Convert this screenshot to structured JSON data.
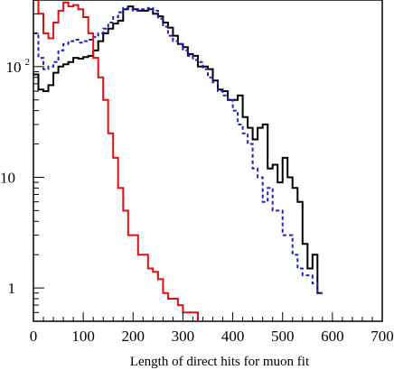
{
  "chart_data": {
    "type": "line",
    "title": "",
    "xlabel": "Length of direct hits for muon fit",
    "ylabel": "",
    "xlim": [
      0,
      700
    ],
    "ylim": [
      0.5,
      400
    ],
    "y_scale": "log",
    "grid": false,
    "legend": "none",
    "x_ticks": [
      {
        "value": 0,
        "label": "0"
      },
      {
        "value": 100,
        "label": "100"
      },
      {
        "value": 200,
        "label": "200"
      },
      {
        "value": 300,
        "label": "300"
      },
      {
        "value": 400,
        "label": "400"
      },
      {
        "value": 500,
        "label": "500"
      },
      {
        "value": 600,
        "label": "600"
      },
      {
        "value": 700,
        "label": "700"
      }
    ],
    "y_ticks": [
      {
        "value": 1,
        "label": "1",
        "exp": ""
      },
      {
        "value": 10,
        "label": "10",
        "exp": ""
      },
      {
        "value": 100,
        "label": "10",
        "exp": "2"
      }
    ],
    "bin_width": 10,
    "series": [
      {
        "color": "#000000",
        "dash": "",
        "stroke_width": 2,
        "x": [
          0,
          10,
          20,
          30,
          40,
          50,
          60,
          70,
          80,
          90,
          100,
          110,
          120,
          130,
          140,
          150,
          160,
          170,
          180,
          190,
          200,
          210,
          220,
          230,
          240,
          250,
          260,
          270,
          280,
          290,
          300,
          310,
          320,
          330,
          340,
          350,
          360,
          370,
          380,
          390,
          400,
          410,
          420,
          430,
          440,
          450,
          460,
          470,
          480,
          490,
          500,
          510,
          520,
          530,
          540,
          550,
          560,
          570
        ],
        "values": [
          85,
          62,
          60,
          68,
          88,
          100,
          105,
          110,
          120,
          118,
          122,
          125,
          140,
          170,
          200,
          220,
          245,
          260,
          330,
          350,
          330,
          320,
          320,
          330,
          300,
          285,
          250,
          225,
          190,
          160,
          150,
          130,
          125,
          100,
          100,
          95,
          75,
          62,
          60,
          50,
          50,
          55,
          35,
          28,
          22,
          28,
          30,
          12,
          13,
          9,
          15,
          10,
          8,
          6,
          2.5,
          1.5,
          2,
          0.9
        ]
      },
      {
        "color": "#2020cc",
        "dash": "4 3",
        "stroke_width": 2,
        "x": [
          0,
          10,
          20,
          30,
          40,
          50,
          60,
          70,
          80,
          90,
          100,
          110,
          120,
          130,
          140,
          150,
          160,
          170,
          180,
          190,
          200,
          210,
          220,
          230,
          240,
          250,
          260,
          270,
          280,
          290,
          300,
          310,
          320,
          330,
          340,
          350,
          360,
          370,
          380,
          390,
          400,
          410,
          420,
          430,
          440,
          450,
          460,
          470,
          480,
          490,
          500,
          510,
          520,
          530,
          540,
          550,
          560,
          570
        ],
        "values": [
          200,
          120,
          95,
          100,
          110,
          140,
          160,
          170,
          175,
          165,
          170,
          175,
          185,
          200,
          220,
          250,
          280,
          310,
          340,
          330,
          320,
          330,
          330,
          340,
          320,
          270,
          230,
          190,
          170,
          160,
          140,
          125,
          115,
          110,
          95,
          80,
          72,
          60,
          55,
          50,
          40,
          30,
          25,
          20,
          12,
          10,
          6,
          8,
          5,
          5,
          3,
          3,
          2,
          1.5,
          1.3,
          1.3,
          1.1,
          0.9
        ]
      },
      {
        "color": "#e01010",
        "dash": "",
        "stroke_width": 2,
        "x": [
          0,
          10,
          20,
          30,
          40,
          50,
          60,
          70,
          80,
          90,
          100,
          110,
          120,
          130,
          140,
          150,
          160,
          170,
          180,
          190,
          200,
          210,
          220,
          230,
          240,
          250,
          260,
          270,
          280,
          290,
          300,
          310,
          320,
          330,
          340,
          350,
          360,
          370,
          380,
          390,
          400,
          410,
          420,
          430,
          440,
          450,
          460,
          470,
          480,
          490,
          500,
          510,
          520,
          530,
          540,
          550,
          560,
          570
        ],
        "values": [
          400,
          300,
          200,
          180,
          250,
          320,
          380,
          350,
          360,
          330,
          280,
          200,
          120,
          80,
          50,
          25,
          15,
          8,
          5,
          3,
          3,
          2,
          2,
          1.5,
          1.4,
          1.2,
          0.9,
          0.8,
          0.8,
          0.7,
          0.6,
          0.6,
          0.6,
          0.5,
          0.5,
          0.5,
          0.5,
          0.5,
          0.5,
          0.5,
          0.5,
          0.5,
          0.5,
          0.5,
          0.5,
          0.5,
          0.5,
          0.5,
          0.5,
          0.5,
          0.5,
          0.5,
          0.5,
          0.5,
          0.5,
          0.5,
          0.5,
          0.5
        ]
      }
    ]
  }
}
